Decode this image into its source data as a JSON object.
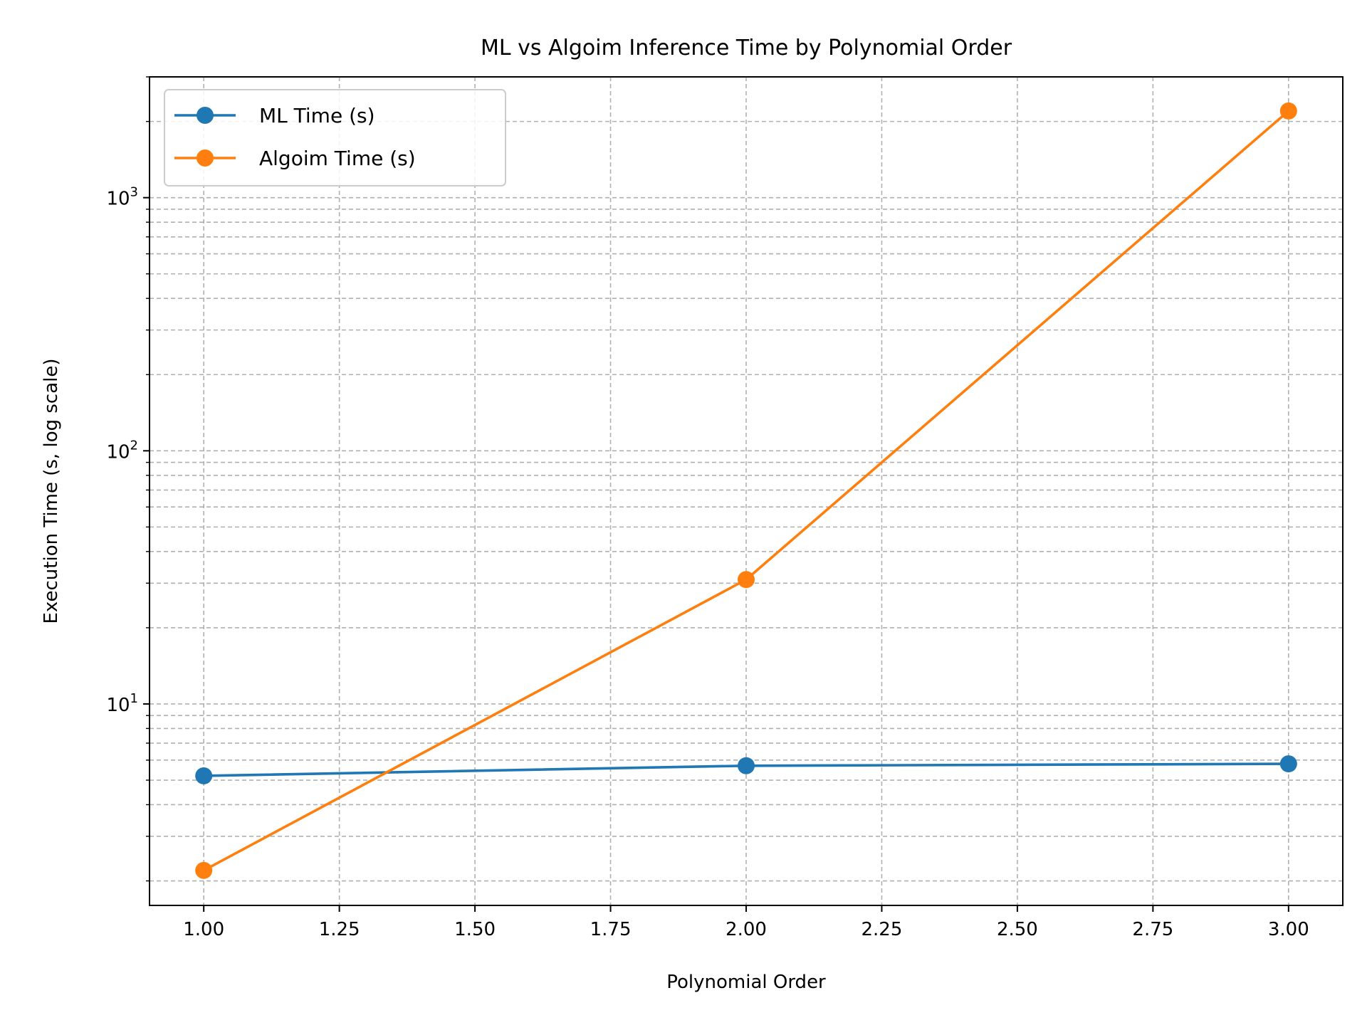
{
  "chart_data": {
    "type": "line",
    "title": "ML vs Algoim Inference Time by Polynomial Order",
    "xlabel": "Polynomial Order",
    "ylabel": "Execution Time (s, log scale)",
    "xlim": [
      0.9,
      3.1
    ],
    "ylim": [
      1.6,
      3000
    ],
    "yscale": "log",
    "grid": true,
    "legend_position": "upper-left",
    "x_ticks": [
      1.0,
      1.25,
      1.5,
      1.75,
      2.0,
      2.25,
      2.5,
      2.75,
      3.0
    ],
    "x_tick_labels": [
      "1.00",
      "1.25",
      "1.50",
      "1.75",
      "2.00",
      "2.25",
      "2.50",
      "2.75",
      "3.00"
    ],
    "y_major_ticks": [
      {
        "value": 10,
        "base": "10",
        "exp": "1"
      },
      {
        "value": 100,
        "base": "10",
        "exp": "2"
      },
      {
        "value": 1000,
        "base": "10",
        "exp": "3"
      }
    ],
    "x": [
      1,
      2,
      3
    ],
    "series": [
      {
        "name": "ML Time (s)",
        "color": "#1f77b4",
        "values": [
          5.2,
          5.7,
          5.8
        ]
      },
      {
        "name": "Algoim Time (s)",
        "color": "#ff7f0e",
        "values": [
          2.2,
          31,
          2200
        ]
      }
    ]
  }
}
